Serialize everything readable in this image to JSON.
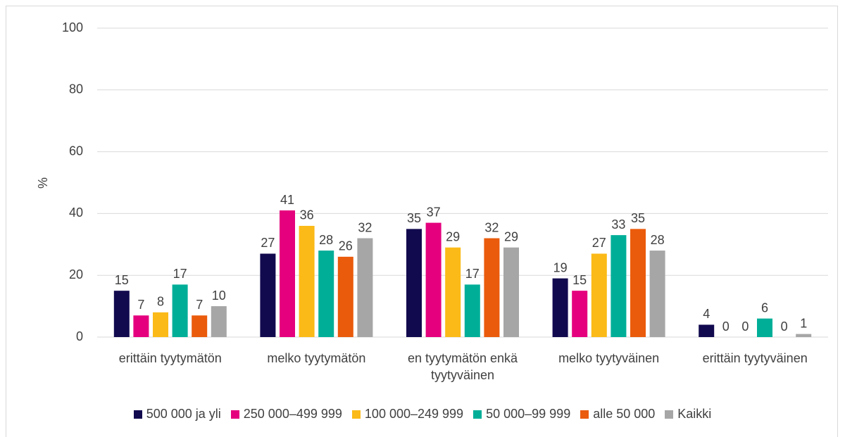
{
  "chart_data": {
    "type": "bar",
    "y_label": "%",
    "categories": [
      "erittäin tyytymätön",
      "melko tyytymätön",
      "en tyytymätön enkä tyytyväinen",
      "melko tyytyväinen",
      "erittäin tyytyväinen"
    ],
    "series": [
      {
        "name": "500 000 ja yli",
        "color": "#120a4f",
        "values": [
          15,
          27,
          35,
          19,
          4
        ]
      },
      {
        "name": "250 000–499 999",
        "color": "#e5007d",
        "values": [
          7,
          41,
          37,
          15,
          0
        ]
      },
      {
        "name": "100 000–249 999",
        "color": "#fbba17",
        "values": [
          8,
          36,
          29,
          27,
          0
        ]
      },
      {
        "name": "50 000–99 999",
        "color": "#00ae98",
        "values": [
          17,
          28,
          17,
          33,
          6
        ]
      },
      {
        "name": "alle 50 000",
        "color": "#ea5b0c",
        "values": [
          7,
          26,
          32,
          35,
          0
        ]
      },
      {
        "name": "Kaikki",
        "color": "#a6a6a6",
        "values": [
          10,
          32,
          29,
          28,
          1
        ]
      }
    ],
    "ylim": [
      0,
      100
    ],
    "yticks": [
      0,
      20,
      40,
      60,
      80,
      100
    ],
    "grid": true,
    "legend": "bottom"
  }
}
